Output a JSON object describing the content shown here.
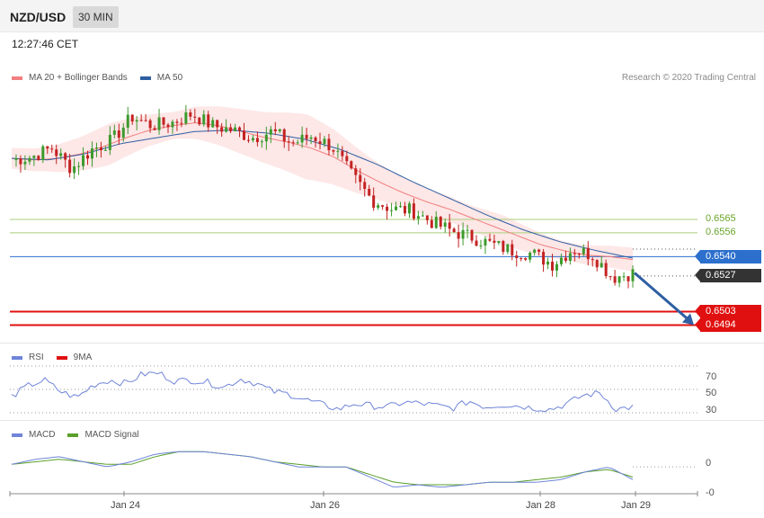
{
  "header": {
    "pair": "NZD/USD",
    "timeframe": "30 MIN"
  },
  "clock": "12:27:46 CET",
  "copyright": "Research © 2020 Trading Central",
  "colors": {
    "bollinger": "#f27f7f",
    "bollinger_fill": "#fde3e3",
    "ma50": "#2f5fa3",
    "up": "#3d9a2e",
    "down": "#c42222",
    "resistance": "#a8cf7a",
    "pivot": "#2c6fcc",
    "support": "#e01010",
    "last": "#333333",
    "rsi": "#6f84d8",
    "rsi_ma": "#e01010",
    "macd": "#6f84d8",
    "macd_signal": "#5aa02a",
    "arrow": "#2f5fa3"
  },
  "chart_data": [
    {
      "type": "candlestick",
      "legend": [
        {
          "name": "MA 20 + Bollinger Bands",
          "color": "#f27f7f"
        },
        {
          "name": "MA 50",
          "color": "#2f5fa3"
        }
      ],
      "ylim": [
        0.6484,
        0.6652
      ],
      "levels": [
        {
          "value": 0.6565,
          "label": "0.6565",
          "kind": "resistance"
        },
        {
          "value": 0.6556,
          "label": "0.6556",
          "kind": "resistance"
        },
        {
          "value": 0.654,
          "label": "0.6540",
          "kind": "pivot"
        },
        {
          "value": 0.6527,
          "label": "0.6527",
          "kind": "last"
        },
        {
          "value": 0.6503,
          "label": "0.6503",
          "kind": "support"
        },
        {
          "value": 0.6494,
          "label": "0.6494",
          "kind": "support"
        }
      ],
      "close_keypoints": [
        0.6605,
        0.6607,
        0.6613,
        0.6599,
        0.6612,
        0.6618,
        0.6634,
        0.6628,
        0.663,
        0.6636,
        0.6628,
        0.6625,
        0.662,
        0.6624,
        0.6616,
        0.6621,
        0.6614,
        0.6594,
        0.6578,
        0.6572,
        0.6571,
        0.6563,
        0.6557,
        0.6553,
        0.6548,
        0.6544,
        0.6542,
        0.6535,
        0.6545,
        0.6541,
        0.6526,
        0.6529
      ],
      "ma20_keypoints": [
        0.6606,
        0.6605,
        0.6606,
        0.6609,
        0.6614,
        0.662,
        0.6625,
        0.6628,
        0.663,
        0.6628,
        0.6624,
        0.662,
        0.6617,
        0.6613,
        0.6607,
        0.6598,
        0.659,
        0.6583,
        0.6577,
        0.6572,
        0.6566,
        0.656,
        0.6554,
        0.6548,
        0.6544,
        0.6541,
        0.654,
        0.6538
      ],
      "bollinger_width_keypoints": [
        0.0007,
        0.0008,
        0.0011,
        0.0014,
        0.0011,
        0.0009,
        0.0012,
        0.0015,
        0.0018,
        0.0022,
        0.0018,
        0.0013,
        0.001,
        0.0009,
        0.0008,
        0.001,
        0.0008,
        0.0006,
        0.0007,
        0.0008
      ],
      "ma50_keypoints": [
        0.6606,
        0.6605,
        0.6609,
        0.6616,
        0.662,
        0.6624,
        0.6625,
        0.6623,
        0.6619,
        0.6612,
        0.6602,
        0.659,
        0.6579,
        0.6568,
        0.6558,
        0.655,
        0.6544,
        0.6539
      ],
      "projection": {
        "from": 0.6529,
        "to": 0.6494
      }
    },
    {
      "type": "line",
      "legend": [
        {
          "name": "RSI",
          "color": "#6f84d8"
        },
        {
          "name": "9MA",
          "color": "#e01010"
        }
      ],
      "ylim": [
        20,
        80
      ],
      "ticks": [
        70,
        50,
        30
      ],
      "rsi_keypoints": [
        44,
        53,
        58,
        48,
        43,
        54,
        58,
        55,
        63,
        64,
        57,
        58,
        56,
        52,
        59,
        55,
        48,
        46,
        41,
        37,
        33,
        38,
        36,
        35,
        39,
        38,
        36,
        34,
        40,
        35,
        37,
        36,
        34,
        33,
        38,
        45,
        47,
        33,
        35
      ]
    },
    {
      "type": "line",
      "legend": [
        {
          "name": "MACD",
          "color": "#6f84d8"
        },
        {
          "name": "MACD Signal",
          "color": "#5aa02a"
        }
      ],
      "ylim": [
        -0.0013,
        0.0011
      ],
      "ticks": [
        "0",
        "-0"
      ],
      "macd_keypoints": [
        0.0001,
        0.0003,
        0.0004,
        0.0002,
        0.0,
        0.0002,
        0.0005,
        0.0006,
        0.0006,
        0.0005,
        0.0004,
        0.0002,
        0.0,
        -0.0,
        0.0,
        -0.0004,
        -0.0008,
        -0.0007,
        -0.0008,
        -0.0007,
        -0.0006,
        -0.0006,
        -0.0006,
        -0.0005,
        -0.0002,
        -0.0,
        -0.0005
      ],
      "signal_keypoints": [
        0.0001,
        0.0002,
        0.0003,
        0.0002,
        0.0001,
        0.0001,
        0.0004,
        0.0006,
        0.0006,
        0.0005,
        0.0004,
        0.0002,
        0.0001,
        0.0,
        -0.0,
        -0.0003,
        -0.0006,
        -0.0007,
        -0.0007,
        -0.0007,
        -0.0006,
        -0.0006,
        -0.0005,
        -0.0004,
        -0.0002,
        -0.0001,
        -0.0004
      ]
    }
  ],
  "x_axis": [
    "Jan 24",
    "Jan 26",
    "Jan 28",
    "Jan 29"
  ]
}
